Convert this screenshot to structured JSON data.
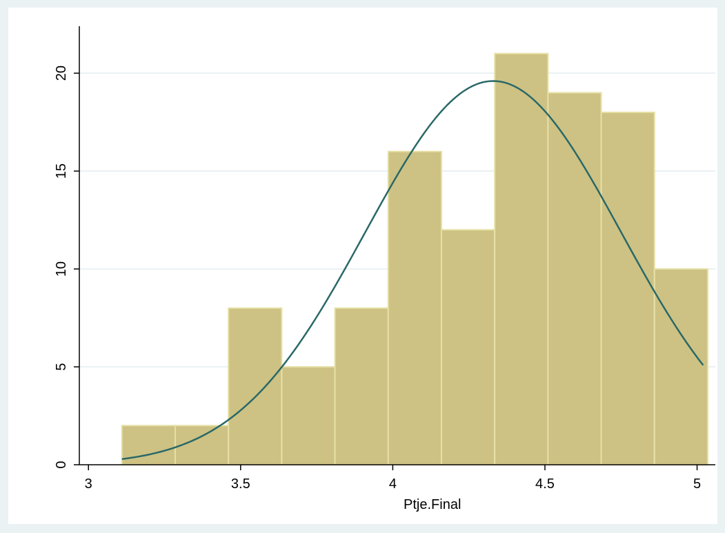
{
  "chart_data": {
    "type": "bar",
    "title": "",
    "xlabel": "Ptje.Final",
    "ylabel": "",
    "xlim": [
      2.97,
      5.06
    ],
    "ylim": [
      0,
      22.4
    ],
    "xticks": [
      "3",
      "3.5",
      "4",
      "4.5",
      "5"
    ],
    "yticks": [
      "0",
      "5",
      "10",
      "15",
      "20"
    ],
    "grid": "horizontal",
    "bins": [
      {
        "x0": 3.11,
        "x1": 3.285,
        "count": 2
      },
      {
        "x0": 3.285,
        "x1": 3.46,
        "count": 2
      },
      {
        "x0": 3.46,
        "x1": 3.635,
        "count": 8
      },
      {
        "x0": 3.635,
        "x1": 3.81,
        "count": 5
      },
      {
        "x0": 3.81,
        "x1": 3.985,
        "count": 8
      },
      {
        "x0": 3.985,
        "x1": 4.16,
        "count": 16
      },
      {
        "x0": 4.16,
        "x1": 4.335,
        "count": 12
      },
      {
        "x0": 4.335,
        "x1": 4.51,
        "count": 21
      },
      {
        "x0": 4.51,
        "x1": 4.685,
        "count": 19
      },
      {
        "x0": 4.685,
        "x1": 4.86,
        "count": 18
      },
      {
        "x0": 4.86,
        "x1": 5.035,
        "count": 10
      }
    ],
    "normal_curve": {
      "mean": 4.33,
      "sd": 0.42,
      "peak": 19.6,
      "x_range": [
        3.11,
        5.02
      ]
    },
    "colors": {
      "bar_fill": "#cdc283",
      "bar_edge": "#e6e0a6",
      "curve": "#2a6868",
      "grid": "#e9f1f3",
      "background": "#eaf2f3",
      "plot_background": "#ffffff"
    }
  }
}
